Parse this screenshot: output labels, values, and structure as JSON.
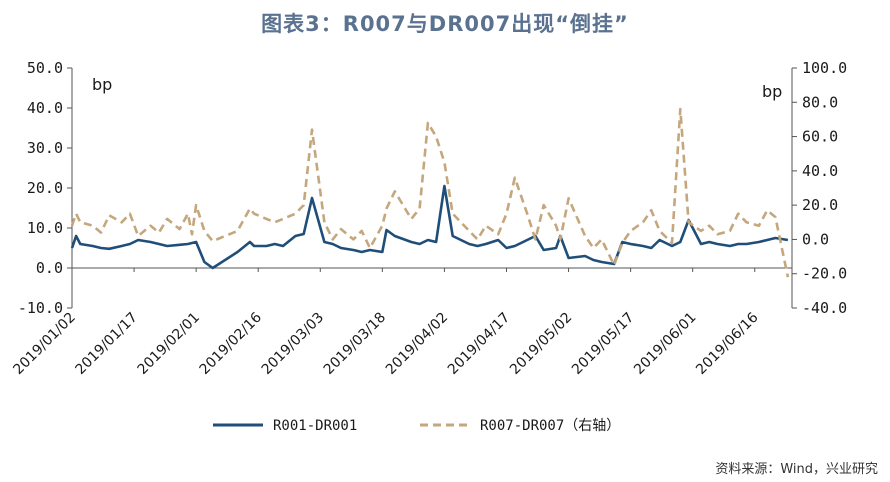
{
  "title": "图表3：R007与DR007出现“倒挂”",
  "source": "资料来源：Wind，兴业研究",
  "colors": {
    "series1": "#1f4e79",
    "series2": "#c4a77c",
    "title": "#5a7290"
  },
  "chart_data": {
    "type": "line",
    "left_axis": {
      "unit": "bp",
      "ylim": [
        -10,
        50
      ],
      "ticks": [
        "50.0",
        "40.0",
        "30.0",
        "20.0",
        "10.0",
        "0.0",
        "-10.0"
      ],
      "tick_values": [
        50,
        40,
        30,
        20,
        10,
        0,
        -10
      ]
    },
    "right_axis": {
      "unit": "bp",
      "ylim": [
        -40,
        100
      ],
      "ticks": [
        "100.0",
        "80.0",
        "60.0",
        "40.0",
        "20.0",
        "0.0",
        "-20.0",
        "-40.0"
      ],
      "tick_values": [
        100,
        80,
        60,
        40,
        20,
        0,
        -20,
        -40
      ]
    },
    "x_ticks": [
      "2019/01/02",
      "2019/01/17",
      "2019/02/01",
      "2019/02/16",
      "2019/03/03",
      "2019/03/18",
      "2019/04/02",
      "2019/04/17",
      "2019/05/02",
      "2019/05/17",
      "2019/06/01",
      "2019/06/16"
    ],
    "x_range": [
      "2019/01/02",
      "2019/06/25"
    ],
    "legend": "bottom",
    "series": [
      {
        "name": "R001-DR001",
        "axis": "left",
        "style": "solid",
        "points": [
          [
            "2019/01/02",
            5.0
          ],
          [
            "2019/01/03",
            8.0
          ],
          [
            "2019/01/04",
            6.0
          ],
          [
            "2019/01/07",
            5.5
          ],
          [
            "2019/01/09",
            5.0
          ],
          [
            "2019/01/11",
            4.8
          ],
          [
            "2019/01/14",
            5.5
          ],
          [
            "2019/01/16",
            6.0
          ],
          [
            "2019/01/18",
            7.0
          ],
          [
            "2019/01/21",
            6.5
          ],
          [
            "2019/01/23",
            6.0
          ],
          [
            "2019/01/25",
            5.5
          ],
          [
            "2019/01/28",
            5.8
          ],
          [
            "2019/01/30",
            6.0
          ],
          [
            "2019/02/01",
            6.5
          ],
          [
            "2019/02/03",
            1.5
          ],
          [
            "2019/02/05",
            0.0
          ],
          [
            "2019/02/11",
            4.0
          ],
          [
            "2019/02/14",
            6.5
          ],
          [
            "2019/02/15",
            5.5
          ],
          [
            "2019/02/18",
            5.5
          ],
          [
            "2019/02/20",
            6.0
          ],
          [
            "2019/02/22",
            5.5
          ],
          [
            "2019/02/25",
            8.0
          ],
          [
            "2019/02/27",
            8.5
          ],
          [
            "2019/03/01",
            17.5
          ],
          [
            "2019/03/04",
            6.5
          ],
          [
            "2019/03/06",
            6.0
          ],
          [
            "2019/03/08",
            5.0
          ],
          [
            "2019/03/11",
            4.5
          ],
          [
            "2019/03/13",
            4.0
          ],
          [
            "2019/03/15",
            4.5
          ],
          [
            "2019/03/18",
            4.0
          ],
          [
            "2019/03/19",
            9.5
          ],
          [
            "2019/03/21",
            8.0
          ],
          [
            "2019/03/25",
            6.5
          ],
          [
            "2019/03/27",
            6.0
          ],
          [
            "2019/03/29",
            7.0
          ],
          [
            "2019/03/31",
            6.5
          ],
          [
            "2019/04/02",
            20.5
          ],
          [
            "2019/04/04",
            8.0
          ],
          [
            "2019/04/08",
            6.0
          ],
          [
            "2019/04/10",
            5.5
          ],
          [
            "2019/04/12",
            6.0
          ],
          [
            "2019/04/15",
            7.0
          ],
          [
            "2019/04/17",
            5.0
          ],
          [
            "2019/04/19",
            5.5
          ],
          [
            "2019/04/22",
            7.0
          ],
          [
            "2019/04/24",
            8.0
          ],
          [
            "2019/04/26",
            4.5
          ],
          [
            "2019/04/29",
            5.0
          ],
          [
            "2019/04/30",
            8.0
          ],
          [
            "2019/05/02",
            2.5
          ],
          [
            "2019/05/06",
            3.0
          ],
          [
            "2019/05/08",
            2.0
          ],
          [
            "2019/05/10",
            1.5
          ],
          [
            "2019/05/13",
            1.0
          ],
          [
            "2019/05/15",
            6.5
          ],
          [
            "2019/05/17",
            6.0
          ],
          [
            "2019/05/20",
            5.5
          ],
          [
            "2019/05/22",
            5.0
          ],
          [
            "2019/05/24",
            7.0
          ],
          [
            "2019/05/27",
            5.5
          ],
          [
            "2019/05/29",
            6.5
          ],
          [
            "2019/05/31",
            12.0
          ],
          [
            "2019/06/03",
            6.0
          ],
          [
            "2019/06/05",
            6.5
          ],
          [
            "2019/06/07",
            6.0
          ],
          [
            "2019/06/10",
            5.5
          ],
          [
            "2019/06/12",
            6.0
          ],
          [
            "2019/06/14",
            6.0
          ],
          [
            "2019/06/17",
            6.5
          ],
          [
            "2019/06/19",
            7.0
          ],
          [
            "2019/06/21",
            7.5
          ],
          [
            "2019/06/24",
            7.0
          ]
        ]
      },
      {
        "name": "R007-DR007（右轴）",
        "axis": "right",
        "style": "dashed",
        "points": [
          [
            "2019/01/02",
            8.0
          ],
          [
            "2019/01/03",
            15.0
          ],
          [
            "2019/01/04",
            10.0
          ],
          [
            "2019/01/07",
            8.0
          ],
          [
            "2019/01/09",
            4.0
          ],
          [
            "2019/01/11",
            14.0
          ],
          [
            "2019/01/14",
            10.0
          ],
          [
            "2019/01/16",
            15.0
          ],
          [
            "2019/01/18",
            2.0
          ],
          [
            "2019/01/21",
            8.0
          ],
          [
            "2019/01/23",
            4.0
          ],
          [
            "2019/01/25",
            12.0
          ],
          [
            "2019/01/28",
            6.0
          ],
          [
            "2019/01/30",
            15.0
          ],
          [
            "2019/01/31",
            3.0
          ],
          [
            "2019/02/01",
            20.0
          ],
          [
            "2019/02/03",
            5.0
          ],
          [
            "2019/02/05",
            -1.0
          ],
          [
            "2019/02/11",
            5.0
          ],
          [
            "2019/02/14",
            18.0
          ],
          [
            "2019/02/15",
            15.0
          ],
          [
            "2019/02/18",
            12.0
          ],
          [
            "2019/02/20",
            10.0
          ],
          [
            "2019/02/22",
            12.0
          ],
          [
            "2019/02/25",
            15.0
          ],
          [
            "2019/02/27",
            20.0
          ],
          [
            "2019/03/01",
            64.0
          ],
          [
            "2019/03/04",
            10.0
          ],
          [
            "2019/03/06",
            0.0
          ],
          [
            "2019/03/08",
            6.0
          ],
          [
            "2019/03/11",
            0.0
          ],
          [
            "2019/03/13",
            5.0
          ],
          [
            "2019/03/15",
            -5.0
          ],
          [
            "2019/03/18",
            8.0
          ],
          [
            "2019/03/19",
            18.0
          ],
          [
            "2019/03/21",
            28.0
          ],
          [
            "2019/03/25",
            12.0
          ],
          [
            "2019/03/27",
            18.0
          ],
          [
            "2019/03/29",
            68.0
          ],
          [
            "2019/03/31",
            60.0
          ],
          [
            "2019/04/02",
            45.0
          ],
          [
            "2019/04/04",
            15.0
          ],
          [
            "2019/04/08",
            5.0
          ],
          [
            "2019/04/10",
            0.0
          ],
          [
            "2019/04/12",
            8.0
          ],
          [
            "2019/04/15",
            3.0
          ],
          [
            "2019/04/17",
            15.0
          ],
          [
            "2019/04/19",
            36.0
          ],
          [
            "2019/04/22",
            15.0
          ],
          [
            "2019/04/24",
            0.0
          ],
          [
            "2019/04/26",
            20.0
          ],
          [
            "2019/04/29",
            8.0
          ],
          [
            "2019/04/30",
            0.0
          ],
          [
            "2019/05/02",
            24.0
          ],
          [
            "2019/05/06",
            2.0
          ],
          [
            "2019/05/08",
            -5.0
          ],
          [
            "2019/05/10",
            0.0
          ],
          [
            "2019/05/13",
            -15.0
          ],
          [
            "2019/05/15",
            -2.0
          ],
          [
            "2019/05/17",
            5.0
          ],
          [
            "2019/05/20",
            10.0
          ],
          [
            "2019/05/22",
            17.0
          ],
          [
            "2019/05/24",
            5.0
          ],
          [
            "2019/05/27",
            -2.0
          ],
          [
            "2019/05/29",
            76.0
          ],
          [
            "2019/05/31",
            10.0
          ],
          [
            "2019/06/03",
            5.0
          ],
          [
            "2019/06/05",
            8.0
          ],
          [
            "2019/06/07",
            3.0
          ],
          [
            "2019/06/10",
            5.0
          ],
          [
            "2019/06/12",
            15.0
          ],
          [
            "2019/06/14",
            10.0
          ],
          [
            "2019/06/17",
            8.0
          ],
          [
            "2019/06/19",
            17.0
          ],
          [
            "2019/06/21",
            13.0
          ],
          [
            "2019/06/24",
            -22.0
          ]
        ]
      }
    ]
  }
}
